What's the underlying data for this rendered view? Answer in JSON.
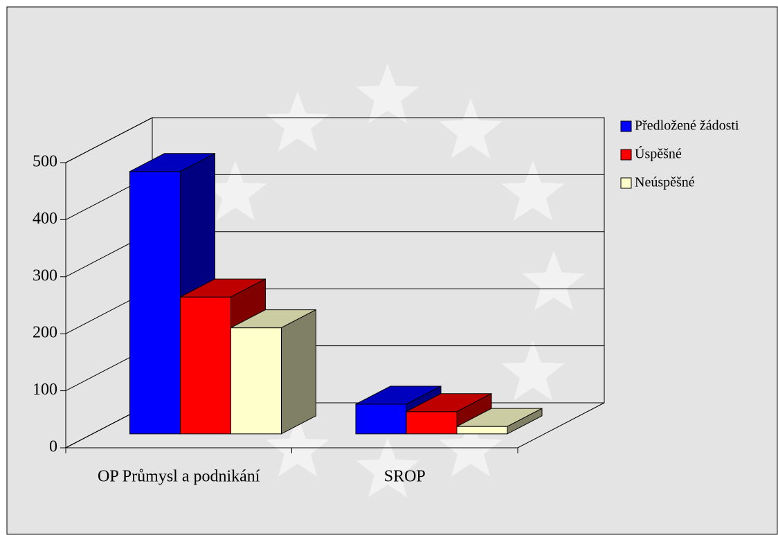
{
  "chart_data": {
    "type": "bar3d",
    "categories": [
      "OP Průmysl a podnikání",
      "SROP"
    ],
    "series": [
      {
        "name": "Předložené žádosti",
        "color": "#0000ff",
        "values": [
          460,
          52
        ]
      },
      {
        "name": "Úspěšné",
        "color": "#ff0000",
        "values": [
          240,
          39
        ]
      },
      {
        "name": "Neúspěšné",
        "color": "#ffffcc",
        "values": [
          186,
          13
        ]
      }
    ],
    "ylim": [
      0,
      500
    ],
    "yticks": [
      0,
      100,
      200,
      300,
      400,
      500
    ],
    "grid": true,
    "legend": "right"
  }
}
